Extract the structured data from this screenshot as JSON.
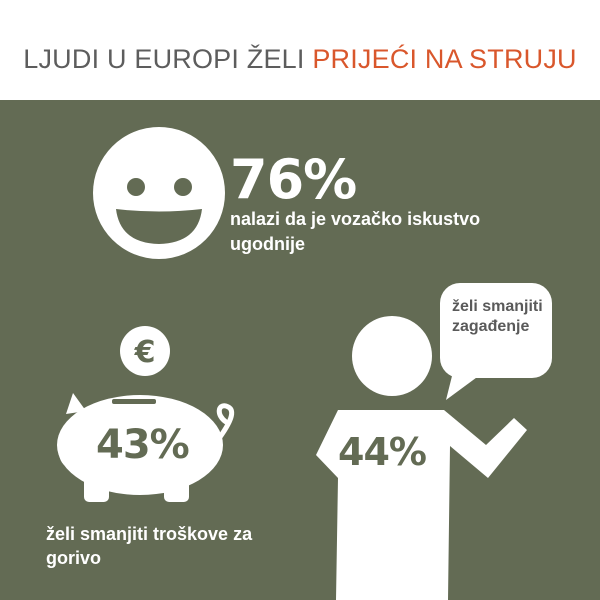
{
  "header": {
    "title_main": "LJUDI U EUROPI ŽELI ",
    "title_accent": "PRIJEĆI NA STRUJU"
  },
  "stats": {
    "driving": {
      "percent": "76%",
      "text": "nalazi da je vozačko iskustvo ugodnije",
      "icon": "smiley-face-icon"
    },
    "pollution": {
      "percent": "44%",
      "text": "želi smanjiti zagađenje",
      "icon": "person-speech-bubble-icon"
    },
    "fuel": {
      "percent": "43%",
      "text": "želi smanjiti troškove za gorivo",
      "icon": "piggy-bank-icon",
      "coin_symbol": "€"
    }
  },
  "colors": {
    "panel": "#636b54",
    "accent": "#d9572c",
    "title_dark": "#5d5d5d",
    "icon": "#ffffff"
  }
}
